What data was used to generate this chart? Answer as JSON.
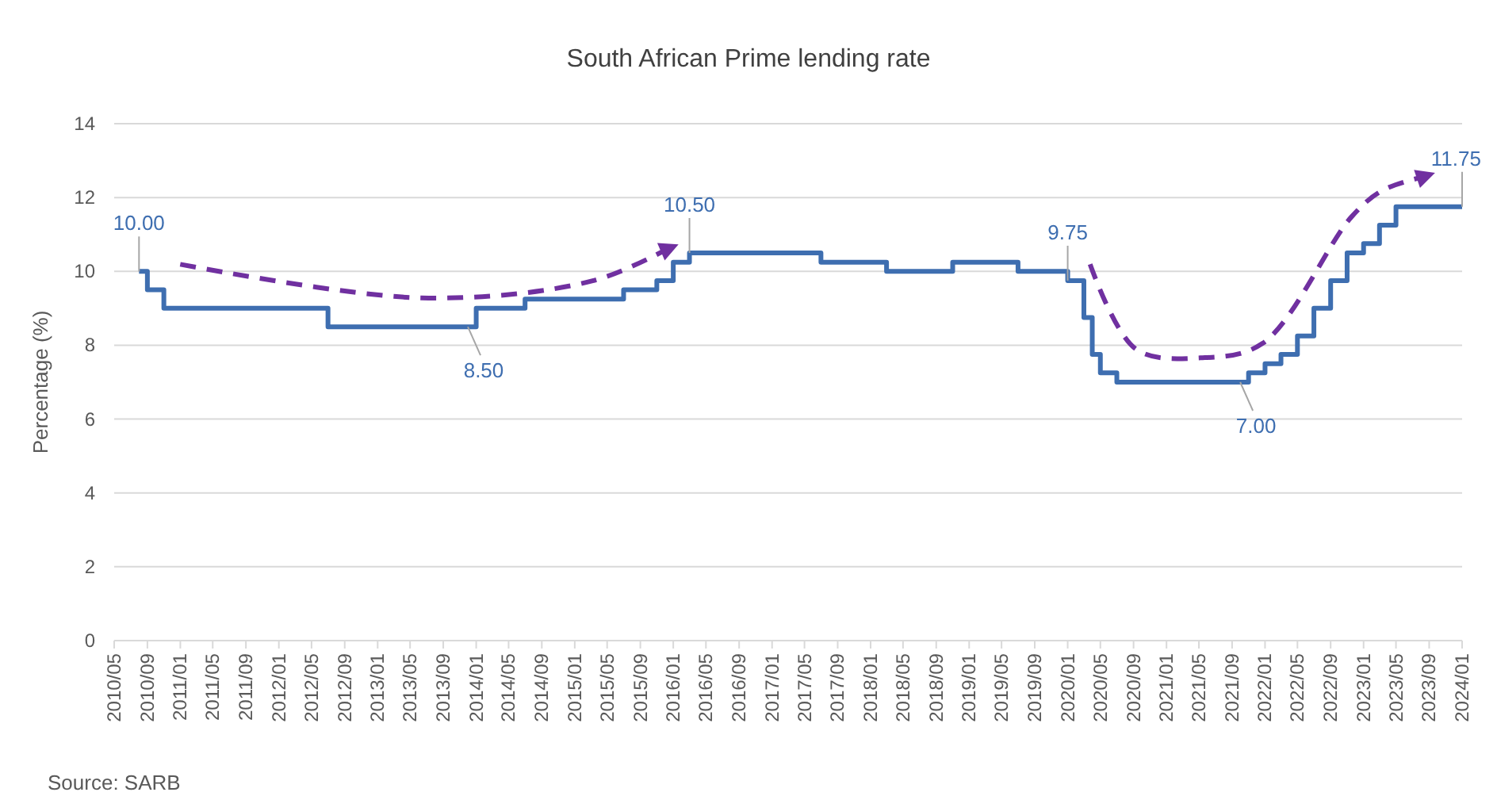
{
  "chart_data": {
    "type": "step",
    "title": "South African Prime lending rate",
    "ylabel": "Percentage (%)",
    "annotations": [
      "Source: SARB"
    ],
    "x": [
      "2010-08",
      "2010-09",
      "2010-11",
      "2012-07",
      "2013-12",
      "2014-01",
      "2014-07",
      "2015-07",
      "2015-11",
      "2016-01",
      "2016-03",
      "2017-07",
      "2018-03",
      "2018-11",
      "2019-07",
      "2020-01",
      "2020-03",
      "2020-04",
      "2020-05",
      "2020-07",
      "2021-10",
      "2021-11",
      "2022-01",
      "2022-03",
      "2022-05",
      "2022-07",
      "2022-09",
      "2022-11",
      "2023-01",
      "2023-03",
      "2023-05",
      "2024-01"
    ],
    "series": [
      {
        "color": "#3e6eb0",
        "values": [
          10,
          9.5,
          9,
          8.5,
          8.5,
          9,
          9.25,
          9.5,
          9.75,
          10.25,
          10.5,
          10.25,
          10,
          10.25,
          10,
          9.75,
          8.75,
          7.75,
          7.25,
          7,
          7,
          7.25,
          7.5,
          7.75,
          8.25,
          9,
          9.75,
          10.5,
          10.75,
          11.25,
          11.75,
          11.75
        ],
        "value_labels": [
          "10.00",
          null,
          null,
          null,
          "8.50",
          null,
          null,
          null,
          null,
          null,
          "10.50",
          null,
          null,
          null,
          null,
          "9.75",
          null,
          null,
          null,
          null,
          "7.00",
          null,
          null,
          null,
          null,
          null,
          null,
          null,
          null,
          null,
          null,
          "11.75"
        ]
      }
    ],
    "xlim": [
      "2010-05",
      "2024-01"
    ],
    "xticks": [
      {
        "value": "2010-05",
        "label": "2010/05"
      },
      {
        "value": "2010-09",
        "label": "2010/09"
      },
      {
        "value": "2011-01",
        "label": "2011/01"
      },
      {
        "value": "2011-05",
        "label": "2011/05"
      },
      {
        "value": "2011-09",
        "label": "2011/09"
      },
      {
        "value": "2012-01",
        "label": "2012/01"
      },
      {
        "value": "2012-05",
        "label": "2012/05"
      },
      {
        "value": "2012-09",
        "label": "2012/09"
      },
      {
        "value": "2013-01",
        "label": "2013/01"
      },
      {
        "value": "2013-05",
        "label": "2013/05"
      },
      {
        "value": "2013-09",
        "label": "2013/09"
      },
      {
        "value": "2014-01",
        "label": "2014/01"
      },
      {
        "value": "2014-05",
        "label": "2014/05"
      },
      {
        "value": "2014-09",
        "label": "2014/09"
      },
      {
        "value": "2015-01",
        "label": "2015/01"
      },
      {
        "value": "2015-05",
        "label": "2015/05"
      },
      {
        "value": "2015-09",
        "label": "2015/09"
      },
      {
        "value": "2016-01",
        "label": "2016/01"
      },
      {
        "value": "2016-05",
        "label": "2016/05"
      },
      {
        "value": "2016-09",
        "label": "2016/09"
      },
      {
        "value": "2017-01",
        "label": "2017/01"
      },
      {
        "value": "2017-05",
        "label": "2017/05"
      },
      {
        "value": "2017-09",
        "label": "2017/09"
      },
      {
        "value": "2018-01",
        "label": "2018/01"
      },
      {
        "value": "2018-05",
        "label": "2018/05"
      },
      {
        "value": "2018-09",
        "label": "2018/09"
      },
      {
        "value": "2019-01",
        "label": "2019/01"
      },
      {
        "value": "2019-05",
        "label": "2019/05"
      },
      {
        "value": "2019-09",
        "label": "2019/09"
      },
      {
        "value": "2020-01",
        "label": "2020/01"
      },
      {
        "value": "2020-05",
        "label": "2020/05"
      },
      {
        "value": "2020-09",
        "label": "2020/09"
      },
      {
        "value": "2021-01",
        "label": "2021/01"
      },
      {
        "value": "2021-05",
        "label": "2021/05"
      },
      {
        "value": "2021-09",
        "label": "2021/09"
      },
      {
        "value": "2022-01",
        "label": "2022/01"
      },
      {
        "value": "2022-05",
        "label": "2022/05"
      },
      {
        "value": "2022-09",
        "label": "2022/09"
      },
      {
        "value": "2023-01",
        "label": "2023/01"
      },
      {
        "value": "2023-05",
        "label": "2023/05"
      },
      {
        "value": "2023-09",
        "label": "2023/09"
      },
      {
        "value": "2024-01",
        "label": "2024/01"
      }
    ],
    "ylim": [
      0,
      14
    ],
    "yticks": [
      0,
      2,
      4,
      6,
      8,
      10,
      12,
      14
    ],
    "grid": "y",
    "line_style": "solid",
    "marker": "none"
  }
}
